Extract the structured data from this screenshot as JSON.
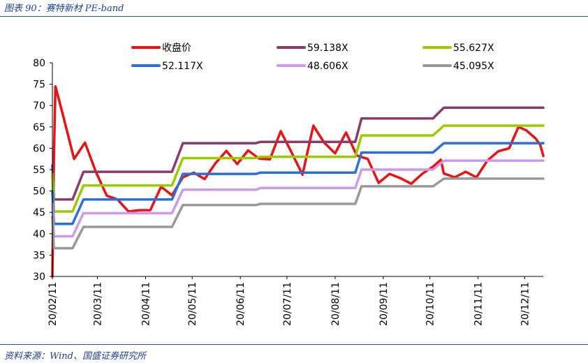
{
  "figure": {
    "title": "图表 90：赛特新材 PE-band",
    "source": "资料来源：Wind、国盛证券研究所"
  },
  "chart_data": {
    "type": "line",
    "title": "赛特新材 PE-band",
    "xlabel": "",
    "ylabel": "",
    "ylim": [
      30,
      80
    ],
    "yticks": [
      30,
      35,
      40,
      45,
      50,
      55,
      60,
      65,
      70,
      75,
      80
    ],
    "xlim": [
      "20/02/11",
      "20/12/23"
    ],
    "xtick_labels": [
      "20/02/11",
      "20/03/11",
      "20/04/11",
      "20/05/11",
      "20/06/11",
      "20/07/11",
      "20/08/11",
      "20/09/11",
      "20/10/11",
      "20/11/11",
      "20/12/11"
    ],
    "grid": false,
    "legend_position": "top",
    "series": [
      {
        "name": "收盘价",
        "color": "#ee1111",
        "points": [
          [
            "20/02/11",
            30
          ],
          [
            "20/02/12",
            58
          ],
          [
            "20/02/13",
            74.5
          ],
          [
            "20/02/18",
            67.5
          ],
          [
            "20/02/25",
            57.5
          ],
          [
            "20/03/03",
            61.3
          ],
          [
            "20/03/10",
            54.5
          ],
          [
            "20/03/17",
            48.9
          ],
          [
            "20/03/24",
            48
          ],
          [
            "20/03/31",
            45.2
          ],
          [
            "20/04/07",
            45.5
          ],
          [
            "20/04/14",
            45.5
          ],
          [
            "20/04/21",
            51
          ],
          [
            "20/04/28",
            49
          ],
          [
            "20/05/05",
            53.2
          ],
          [
            "20/05/12",
            54.3
          ],
          [
            "20/05/19",
            52.8
          ],
          [
            "20/05/26",
            56.5
          ],
          [
            "20/06/02",
            59.4
          ],
          [
            "20/06/09",
            56.3
          ],
          [
            "20/06/16",
            59.5
          ],
          [
            "20/06/23",
            57.6
          ],
          [
            "20/06/30",
            57.4
          ],
          [
            "20/07/07",
            64
          ],
          [
            "20/07/14",
            59
          ],
          [
            "20/07/21",
            53.8
          ],
          [
            "20/07/28",
            65.3
          ],
          [
            "20/08/04",
            61.3
          ],
          [
            "20/08/11",
            58.8
          ],
          [
            "20/08/18",
            63.7
          ],
          [
            "20/08/25",
            58.3
          ],
          [
            "20/09/01",
            57.5
          ],
          [
            "20/09/08",
            51.9
          ],
          [
            "20/09/15",
            54
          ],
          [
            "20/09/22",
            53
          ],
          [
            "20/09/29",
            51.7
          ],
          [
            "20/10/06",
            54
          ],
          [
            "20/10/13",
            55.7
          ],
          [
            "20/10/18",
            57.3
          ],
          [
            "20/10/20",
            54.1
          ],
          [
            "20/10/27",
            53.2
          ],
          [
            "20/11/03",
            54.5
          ],
          [
            "20/11/10",
            53.2
          ],
          [
            "20/11/17",
            57.1
          ],
          [
            "20/11/24",
            59.3
          ],
          [
            "20/12/01",
            60
          ],
          [
            "20/12/07",
            65
          ],
          [
            "20/12/12",
            64.2
          ],
          [
            "20/12/18",
            62.3
          ],
          [
            "20/12/21",
            60.8
          ],
          [
            "20/12/23",
            58.2
          ]
        ]
      },
      {
        "name": "59.138X",
        "color": "#8b3a6b",
        "points": [
          [
            "20/02/11",
            56
          ],
          [
            "20/02/12",
            48
          ],
          [
            "20/02/24",
            48
          ],
          [
            "20/03/02",
            54.5
          ],
          [
            "20/04/28",
            54.5
          ],
          [
            "20/05/05",
            61.2
          ],
          [
            "20/06/21",
            61.2
          ],
          [
            "20/06/24",
            61.5
          ],
          [
            "20/08/24",
            61.5
          ],
          [
            "20/08/28",
            67
          ],
          [
            "20/10/13",
            67
          ],
          [
            "20/10/20",
            69.5
          ],
          [
            "20/12/23",
            69.5
          ]
        ]
      },
      {
        "name": "55.627X",
        "color": "#99cc00",
        "points": [
          [
            "20/02/11",
            54
          ],
          [
            "20/02/12",
            45.2
          ],
          [
            "20/02/24",
            45.2
          ],
          [
            "20/03/02",
            51.3
          ],
          [
            "20/04/28",
            51.3
          ],
          [
            "20/05/05",
            57.7
          ],
          [
            "20/06/21",
            57.7
          ],
          [
            "20/06/24",
            58
          ],
          [
            "20/08/24",
            58
          ],
          [
            "20/08/28",
            63
          ],
          [
            "20/10/13",
            63
          ],
          [
            "20/10/20",
            65.3
          ],
          [
            "20/12/23",
            65.3
          ]
        ]
      },
      {
        "name": "52.117X",
        "color": "#2b6fd8",
        "points": [
          [
            "20/02/11",
            50
          ],
          [
            "20/02/12",
            42.3
          ],
          [
            "20/02/24",
            42.3
          ],
          [
            "20/03/02",
            48
          ],
          [
            "20/04/28",
            48
          ],
          [
            "20/05/05",
            54
          ],
          [
            "20/06/21",
            54
          ],
          [
            "20/06/24",
            54.3
          ],
          [
            "20/08/24",
            54.3
          ],
          [
            "20/08/28",
            59
          ],
          [
            "20/10/13",
            59
          ],
          [
            "20/10/20",
            61.2
          ],
          [
            "20/12/23",
            61.2
          ]
        ]
      },
      {
        "name": "48.606X",
        "color": "#cc99ee",
        "points": [
          [
            "20/02/11",
            47
          ],
          [
            "20/02/12",
            39.4
          ],
          [
            "20/02/24",
            39.4
          ],
          [
            "20/03/02",
            44.8
          ],
          [
            "20/04/28",
            44.8
          ],
          [
            "20/05/05",
            50.3
          ],
          [
            "20/06/21",
            50.3
          ],
          [
            "20/06/24",
            50.7
          ],
          [
            "20/08/24",
            50.7
          ],
          [
            "20/08/28",
            55
          ],
          [
            "20/10/13",
            55
          ],
          [
            "20/10/20",
            57.1
          ],
          [
            "20/12/23",
            57.1
          ]
        ]
      },
      {
        "name": "45.095X",
        "color": "#999999",
        "points": [
          [
            "20/02/11",
            44
          ],
          [
            "20/02/12",
            36.6
          ],
          [
            "20/02/24",
            36.6
          ],
          [
            "20/03/02",
            41.6
          ],
          [
            "20/04/28",
            41.6
          ],
          [
            "20/05/05",
            46.7
          ],
          [
            "20/06/21",
            46.7
          ],
          [
            "20/06/24",
            47
          ],
          [
            "20/08/24",
            47
          ],
          [
            "20/08/28",
            51.1
          ],
          [
            "20/10/13",
            51.1
          ],
          [
            "20/10/20",
            52.9
          ],
          [
            "20/12/23",
            52.9
          ]
        ]
      }
    ]
  }
}
